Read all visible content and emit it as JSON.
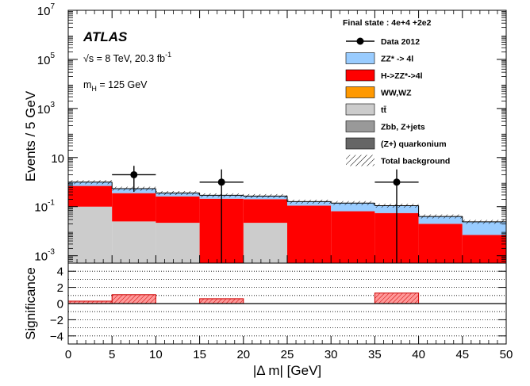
{
  "figure": {
    "experiment": "ATLAS",
    "energy_label": "√s = 8 TeV, 20.3 fb",
    "lumi_exponent": "-1",
    "mass_label": "m",
    "mass_subscript": "H",
    "mass_value": " = 125 GeV",
    "final_state": "Final state : 4e+4  +2e2"
  },
  "chart_data": [
    {
      "type": "bar",
      "stacked": true,
      "xlabel": "|Δ m| [GeV]",
      "ylabel": "Events / 5 GeV",
      "xlim": [
        0,
        50
      ],
      "ylim": [
        0.0005,
        10000000
      ],
      "yscale": "log",
      "xticks": [
        0,
        5,
        10,
        15,
        20,
        25,
        30,
        35,
        40,
        45,
        50
      ],
      "yticks": [
        {
          "value": 0.001,
          "base": "10",
          "exp": "-3"
        },
        {
          "value": 0.1,
          "base": "10",
          "exp": "-1"
        },
        {
          "value": 10,
          "base": "10",
          "exp": ""
        },
        {
          "value": 1000,
          "base": "10",
          "exp": "3"
        },
        {
          "value": 100000,
          "base": "10",
          "exp": "5"
        },
        {
          "value": 10000000,
          "base": "10",
          "exp": "7"
        }
      ],
      "bin_edges": [
        0,
        5,
        10,
        15,
        20,
        25,
        30,
        35,
        40,
        45,
        50
      ],
      "series": [
        {
          "name": "tt̄",
          "color": "#cccccc",
          "values": [
            0.1,
            0.025,
            0.022,
            0,
            0.022,
            0,
            0,
            0,
            0,
            0
          ]
        },
        {
          "name": "H->ZZ*->4l",
          "color": "#ff0000",
          "values": [
            0.6,
            0.33,
            0.24,
            0.21,
            0.18,
            0.11,
            0.065,
            0.055,
            0.02,
            0.007
          ]
        },
        {
          "name": "ZZ* -> 4l",
          "color": "#99ccff",
          "values": [
            0.3,
            0.18,
            0.1,
            0.08,
            0.07,
            0.05,
            0.075,
            0.055,
            0.02,
            0.017
          ]
        }
      ],
      "total_background": [
        1.0,
        0.54,
        0.36,
        0.29,
        0.27,
        0.16,
        0.14,
        0.11,
        0.04,
        0.024
      ],
      "data": {
        "name": "Data 2012",
        "x": [
          7.5,
          17.5,
          37.5
        ],
        "y": [
          2,
          1,
          1
        ],
        "xerr": [
          2.5,
          2.5,
          2.5
        ],
        "yerr_low": [
          1.6,
          1.0,
          1.0
        ],
        "yerr_high": [
          2.6,
          2.3,
          2.3
        ]
      },
      "legend": {
        "placement": "top-right",
        "entries": [
          {
            "label": "Data 2012",
            "style": "marker"
          },
          {
            "label": "ZZ* -> 4l",
            "style": "fill",
            "color": "#99ccff"
          },
          {
            "label": "H->ZZ*->4l",
            "style": "fill",
            "color": "#ff0000"
          },
          {
            "label": "WW,WZ",
            "style": "fill",
            "color": "#ff9900"
          },
          {
            "label": "tt̄",
            "style": "fill",
            "color": "#cccccc"
          },
          {
            "label": "Zbb, Z+jets",
            "style": "fill",
            "color": "#999999"
          },
          {
            "label": "(Z+) quarkonium",
            "style": "fill",
            "color": "#666666"
          },
          {
            "label": "Total background",
            "style": "hatch"
          }
        ]
      }
    },
    {
      "type": "bar",
      "xlabel": "|Δ m| [GeV]",
      "ylabel": "Significance",
      "xlim": [
        0,
        50
      ],
      "ylim": [
        -5,
        5
      ],
      "yticks": [
        4,
        2,
        0,
        -2,
        -4
      ],
      "grid_lines": [
        -4,
        -3,
        -2,
        -1,
        1,
        2,
        3,
        4
      ],
      "bin_edges": [
        0,
        5,
        10,
        15,
        20,
        25,
        30,
        35,
        40,
        45,
        50
      ],
      "values": [
        0.3,
        1.1,
        0,
        0.6,
        0,
        0,
        0,
        1.3,
        0,
        0
      ],
      "color": "#ff9999"
    }
  ]
}
